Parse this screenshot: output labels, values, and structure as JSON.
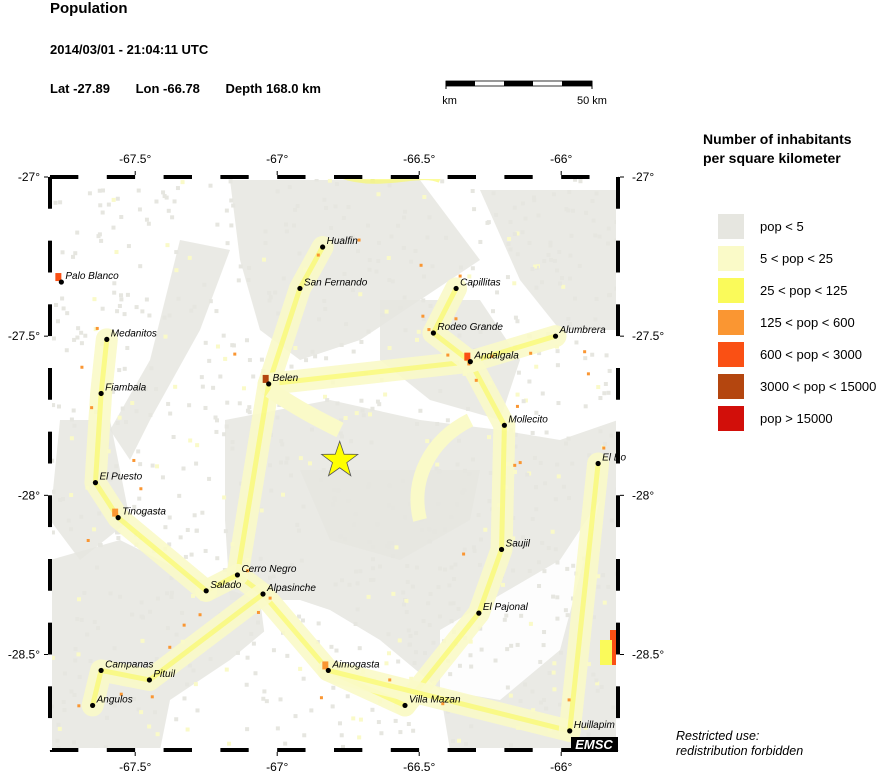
{
  "header": {
    "title": "Population",
    "datetime": "2014/03/01 - 21:04:11 UTC",
    "lat": "Lat -27.89",
    "lon": "Lon -66.78",
    "depth": "Depth 168.0 km"
  },
  "scale_bar": {
    "start_label": "0 km",
    "end_label": "50 km"
  },
  "map": {
    "extent": {
      "lon": [
        -67.8,
        -65.8
      ],
      "lat": [
        -28.8,
        -27.0
      ]
    },
    "lon_ticks": [
      -67.5,
      -67,
      -66.5,
      -66
    ],
    "lon_tick_labels": [
      "-67.5°",
      "-67°",
      "-66.5°",
      "-66°"
    ],
    "lat_ticks": [
      -27,
      -27.5,
      -28,
      -28.5
    ],
    "lat_tick_labels": [
      "-27°",
      "-27.5°",
      "-28°",
      "-28.5°"
    ],
    "epicenter": {
      "lon": -66.78,
      "lat": -27.89,
      "icon": "star-icon",
      "color": "#ffff00"
    },
    "cities": [
      {
        "name": "Hualfin",
        "lon": -66.84,
        "lat": -27.22
      },
      {
        "name": "San Fernando",
        "lon": -66.92,
        "lat": -27.35
      },
      {
        "name": "Capillitas",
        "lon": -66.37,
        "lat": -27.35
      },
      {
        "name": "Palo Blanco",
        "lon": -67.76,
        "lat": -27.33
      },
      {
        "name": "Medanitos",
        "lon": -67.6,
        "lat": -27.51
      },
      {
        "name": "Rodeo Grande",
        "lon": -66.45,
        "lat": -27.49
      },
      {
        "name": "Alumbrera",
        "lon": -66.02,
        "lat": -27.5
      },
      {
        "name": "Andalgala",
        "lon": -66.32,
        "lat": -27.58
      },
      {
        "name": "Fiambala",
        "lon": -67.62,
        "lat": -27.68
      },
      {
        "name": "Belen",
        "lon": -67.03,
        "lat": -27.65
      },
      {
        "name": "Mollecito",
        "lon": -66.2,
        "lat": -27.78
      },
      {
        "name": "El Bo",
        "lon": -65.87,
        "lat": -27.9
      },
      {
        "name": "El Puesto",
        "lon": -67.64,
        "lat": -27.96
      },
      {
        "name": "Tinogasta",
        "lon": -67.56,
        "lat": -28.07
      },
      {
        "name": "Saujil",
        "lon": -66.21,
        "lat": -28.17
      },
      {
        "name": "Cerro Negro",
        "lon": -67.14,
        "lat": -28.25
      },
      {
        "name": "Salado",
        "lon": -67.25,
        "lat": -28.3
      },
      {
        "name": "Alpasinche",
        "lon": -67.05,
        "lat": -28.31
      },
      {
        "name": "El Pajonal",
        "lon": -66.29,
        "lat": -28.37
      },
      {
        "name": "Campanas",
        "lon": -67.62,
        "lat": -28.55
      },
      {
        "name": "Aimogasta",
        "lon": -66.82,
        "lat": -28.55
      },
      {
        "name": "Pituil",
        "lon": -67.45,
        "lat": -28.58
      },
      {
        "name": "Angulos",
        "lon": -67.65,
        "lat": -28.66
      },
      {
        "name": "Villa Mazan",
        "lon": -66.55,
        "lat": -28.66
      },
      {
        "name": "Huillapim",
        "lon": -65.97,
        "lat": -28.74
      }
    ],
    "logo": "EMSC"
  },
  "legend": {
    "title_line1": "Number of inhabitants",
    "title_line2": "per square kilometer",
    "classes": [
      {
        "label": "pop < 5",
        "color": "#e6e6e0"
      },
      {
        "label": "5 < pop < 25",
        "color": "#fafac8"
      },
      {
        "label": "25 < pop < 125",
        "color": "#fafa5a"
      },
      {
        "label": "125 < pop < 600",
        "color": "#fa9632"
      },
      {
        "label": "600 < pop < 3000",
        "color": "#fa5014"
      },
      {
        "label": "3000 < pop < 15000",
        "color": "#b4460f"
      },
      {
        "label": "pop > 15000",
        "color": "#d20f0a"
      }
    ]
  },
  "footer": {
    "line1": "Restricted use:",
    "line2": "redistribution forbidden"
  }
}
